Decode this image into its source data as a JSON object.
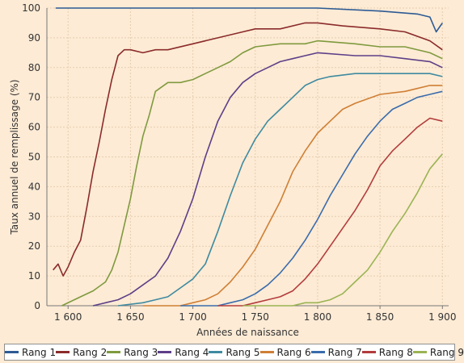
{
  "chart_data": {
    "type": "line",
    "ylabel": "Taux annuel de remplissage (%)",
    "xlabel": "Années de naissance",
    "xlim": [
      1583,
      1905
    ],
    "ylim": [
      0,
      100
    ],
    "x_ticks": [
      1600,
      1650,
      1700,
      1750,
      1800,
      1850,
      1900
    ],
    "x_tick_labels": [
      "1 600",
      "1 650",
      "1 700",
      "1 750",
      "1 800",
      "1 850",
      "1 900"
    ],
    "y_ticks": [
      0,
      10,
      20,
      30,
      40,
      50,
      60,
      70,
      80,
      90,
      100
    ],
    "grid": true,
    "legend_position": "bottom",
    "series": [
      {
        "name": "Rang 1",
        "color": "#2c5a94",
        "x": [
          1590,
          1600,
          1650,
          1700,
          1750,
          1800,
          1850,
          1880,
          1890,
          1895,
          1900
        ],
        "values": [
          100,
          100,
          100,
          100,
          100,
          100,
          99,
          98,
          97,
          92,
          95
        ]
      },
      {
        "name": "Rang 2",
        "color": "#8b2b2b",
        "x": [
          1588,
          1592,
          1596,
          1600,
          1605,
          1610,
          1615,
          1620,
          1625,
          1630,
          1635,
          1640,
          1645,
          1650,
          1660,
          1670,
          1680,
          1700,
          1720,
          1740,
          1750,
          1770,
          1790,
          1800,
          1820,
          1850,
          1870,
          1890,
          1900
        ],
        "values": [
          12,
          14,
          10,
          13,
          18,
          22,
          33,
          45,
          55,
          66,
          76,
          84,
          86,
          86,
          85,
          86,
          86,
          88,
          90,
          92,
          93,
          93,
          95,
          95,
          94,
          93,
          92,
          89,
          86
        ]
      },
      {
        "name": "Rang 3",
        "color": "#7f9a3e",
        "x": [
          1595,
          1610,
          1620,
          1630,
          1635,
          1640,
          1645,
          1650,
          1655,
          1660,
          1665,
          1670,
          1680,
          1690,
          1700,
          1710,
          1720,
          1730,
          1740,
          1750,
          1770,
          1790,
          1800,
          1830,
          1850,
          1870,
          1890,
          1900
        ],
        "values": [
          0,
          3,
          5,
          8,
          12,
          18,
          27,
          36,
          47,
          57,
          64,
          72,
          75,
          75,
          76,
          78,
          80,
          82,
          85,
          87,
          88,
          88,
          89,
          88,
          87,
          87,
          85,
          83
        ]
      },
      {
        "name": "Rang 4",
        "color": "#5e3f88",
        "x": [
          1620,
          1630,
          1640,
          1650,
          1660,
          1670,
          1680,
          1690,
          1700,
          1710,
          1720,
          1730,
          1740,
          1750,
          1760,
          1770,
          1780,
          1790,
          1800,
          1830,
          1850,
          1870,
          1890,
          1900
        ],
        "values": [
          0,
          1,
          2,
          4,
          7,
          10,
          16,
          25,
          36,
          50,
          62,
          70,
          75,
          78,
          80,
          82,
          83,
          84,
          85,
          84,
          84,
          83,
          82,
          80
        ]
      },
      {
        "name": "Rang 5",
        "color": "#3e8aa0",
        "x": [
          1640,
          1660,
          1670,
          1680,
          1690,
          1700,
          1710,
          1720,
          1730,
          1740,
          1750,
          1760,
          1770,
          1780,
          1790,
          1800,
          1810,
          1830,
          1850,
          1870,
          1890,
          1900
        ],
        "values": [
          0,
          1,
          2,
          3,
          6,
          9,
          14,
          25,
          37,
          48,
          56,
          62,
          66,
          70,
          74,
          76,
          77,
          78,
          78,
          78,
          78,
          77
        ]
      },
      {
        "name": "Rang 6",
        "color": "#cf7f35",
        "x": [
          1660,
          1690,
          1700,
          1710,
          1720,
          1730,
          1740,
          1750,
          1760,
          1770,
          1780,
          1790,
          1800,
          1810,
          1820,
          1830,
          1850,
          1870,
          1890,
          1900
        ],
        "values": [
          0,
          0,
          1,
          2,
          4,
          8,
          13,
          19,
          27,
          35,
          45,
          52,
          58,
          62,
          66,
          68,
          71,
          72,
          74,
          74
        ]
      },
      {
        "name": "Rang 7",
        "color": "#3a6cac",
        "x": [
          1690,
          1720,
          1730,
          1740,
          1750,
          1760,
          1770,
          1780,
          1790,
          1800,
          1810,
          1820,
          1830,
          1840,
          1850,
          1860,
          1870,
          1880,
          1890,
          1900
        ],
        "values": [
          0,
          0,
          1,
          2,
          4,
          7,
          11,
          16,
          22,
          29,
          37,
          44,
          51,
          57,
          62,
          66,
          68,
          70,
          71,
          72
        ]
      },
      {
        "name": "Rang 8",
        "color": "#b33c3c",
        "x": [
          1720,
          1740,
          1750,
          1760,
          1770,
          1780,
          1790,
          1800,
          1810,
          1820,
          1830,
          1840,
          1850,
          1860,
          1870,
          1880,
          1890,
          1900
        ],
        "values": [
          0,
          0,
          1,
          2,
          3,
          5,
          9,
          14,
          20,
          26,
          32,
          39,
          47,
          52,
          56,
          60,
          63,
          62
        ]
      },
      {
        "name": "Rang 9",
        "color": "#9ab453",
        "x": [
          1740,
          1770,
          1780,
          1790,
          1800,
          1810,
          1820,
          1830,
          1840,
          1850,
          1860,
          1870,
          1880,
          1890,
          1900
        ],
        "values": [
          0,
          0,
          0,
          1,
          1,
          2,
          4,
          8,
          12,
          18,
          25,
          31,
          38,
          46,
          51
        ]
      }
    ]
  }
}
